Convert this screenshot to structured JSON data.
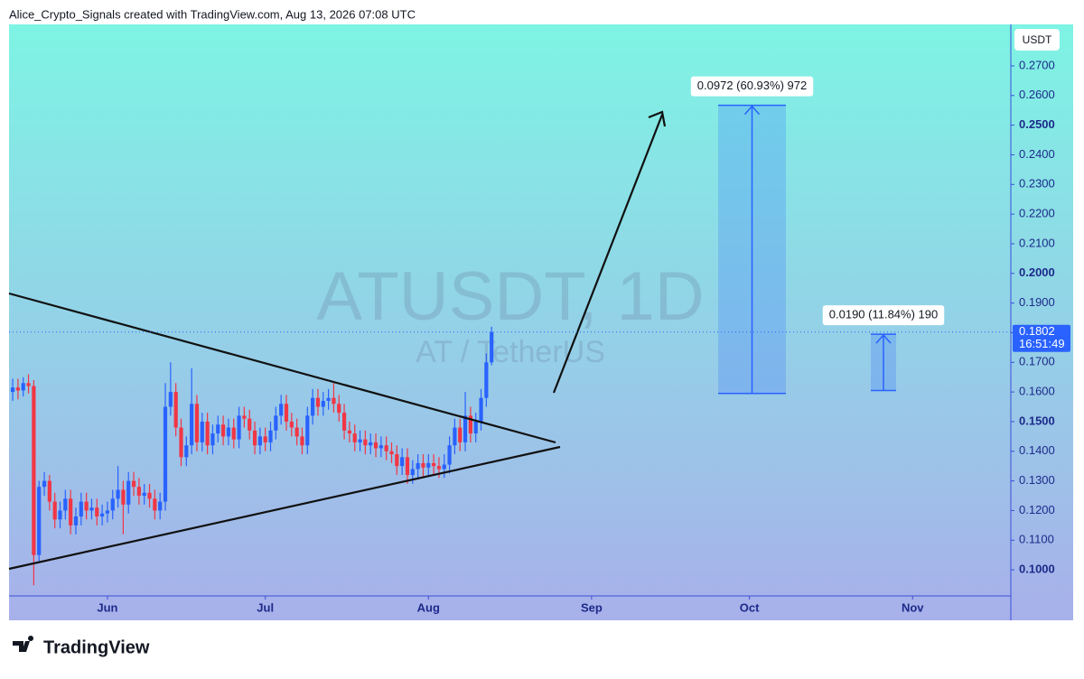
{
  "chart_data": {
    "type": "candlestick",
    "attribution": "Alice_Crypto_Signals created with TradingView.com, Aug 13, 2026 07:08 UTC",
    "title": "ATUSDT, 1D",
    "subtitle": "AT / TetherUS",
    "currency": "USDT",
    "brand": "TradingView",
    "up_color": "#2962ff",
    "down_color": "#f23645",
    "xlim": [
      -0.7,
      189.5
    ],
    "xticks": [
      {
        "value": 18,
        "label": "Jun"
      },
      {
        "value": 48,
        "label": "Jul"
      },
      {
        "value": 79,
        "label": "Aug"
      },
      {
        "value": 110,
        "label": "Sep"
      },
      {
        "value": 140,
        "label": "Oct"
      },
      {
        "value": 171,
        "label": "Nov"
      }
    ],
    "ylim": [
      0.0912,
      0.284
    ],
    "yticks": [
      {
        "value": 0.1,
        "label": "0.1000",
        "bold": true
      },
      {
        "value": 0.11,
        "label": "0.1100"
      },
      {
        "value": 0.12,
        "label": "0.1200"
      },
      {
        "value": 0.13,
        "label": "0.1300"
      },
      {
        "value": 0.14,
        "label": "0.1400"
      },
      {
        "value": 0.15,
        "label": "0.1500",
        "bold": true
      },
      {
        "value": 0.16,
        "label": "0.1600"
      },
      {
        "value": 0.17,
        "label": "0.1700"
      },
      {
        "value": 0.18,
        "label": "0.1800"
      },
      {
        "value": 0.19,
        "label": "0.1900"
      },
      {
        "value": 0.2,
        "label": "0.2000",
        "bold": true
      },
      {
        "value": 0.21,
        "label": "0.2100"
      },
      {
        "value": 0.22,
        "label": "0.2200"
      },
      {
        "value": 0.23,
        "label": "0.2300"
      },
      {
        "value": 0.24,
        "label": "0.2400"
      },
      {
        "value": 0.25,
        "label": "0.2500",
        "bold": true
      },
      {
        "value": 0.26,
        "label": "0.2600"
      },
      {
        "value": 0.27,
        "label": "0.2700"
      }
    ],
    "last_price": 0.1802,
    "countdown": "16:51:49",
    "x": [
      0,
      1,
      2,
      3,
      4,
      5,
      6,
      7,
      8,
      9,
      10,
      11,
      12,
      13,
      14,
      15,
      16,
      17,
      18,
      19,
      20,
      21,
      22,
      23,
      24,
      25,
      26,
      27,
      28,
      29,
      30,
      31,
      32,
      33,
      34,
      35,
      36,
      37,
      38,
      39,
      40,
      41,
      42,
      43,
      44,
      45,
      46,
      47,
      48,
      49,
      50,
      51,
      52,
      53,
      54,
      55,
      56,
      57,
      58,
      59,
      60,
      61,
      62,
      63,
      64,
      65,
      66,
      67,
      68,
      69,
      70,
      71,
      72,
      73,
      74,
      75,
      76,
      77,
      78,
      79,
      80,
      81,
      82,
      83,
      84,
      85,
      86,
      87,
      88,
      89,
      90,
      91
    ],
    "open": [
      0.16,
      0.1615,
      0.1605,
      0.163,
      0.162,
      0.105,
      0.128,
      0.13,
      0.123,
      0.117,
      0.12,
      0.124,
      0.115,
      0.118,
      0.123,
      0.12,
      0.121,
      0.118,
      0.119,
      0.12,
      0.124,
      0.127,
      0.122,
      0.13,
      0.128,
      0.125,
      0.126,
      0.124,
      0.12,
      0.123,
      0.155,
      0.16,
      0.148,
      0.138,
      0.142,
      0.156,
      0.143,
      0.15,
      0.142,
      0.146,
      0.149,
      0.145,
      0.148,
      0.144,
      0.152,
      0.151,
      0.147,
      0.142,
      0.145,
      0.143,
      0.147,
      0.152,
      0.156,
      0.15,
      0.148,
      0.145,
      0.142,
      0.152,
      0.158,
      0.155,
      0.157,
      0.158,
      0.156,
      0.153,
      0.147,
      0.146,
      0.143,
      0.144,
      0.142,
      0.143,
      0.141,
      0.142,
      0.14,
      0.139,
      0.135,
      0.138,
      0.132,
      0.134,
      0.136,
      0.1345,
      0.136,
      0.135,
      0.134,
      0.1355,
      0.142,
      0.148,
      0.143,
      0.152,
      0.146,
      0.15,
      0.158,
      0.17
    ],
    "high": [
      0.1645,
      0.1645,
      0.165,
      0.166,
      0.164,
      0.13,
      0.133,
      0.132,
      0.126,
      0.123,
      0.127,
      0.127,
      0.121,
      0.126,
      0.126,
      0.124,
      0.124,
      0.122,
      0.123,
      0.127,
      0.135,
      0.13,
      0.133,
      0.133,
      0.131,
      0.129,
      0.129,
      0.127,
      0.126,
      0.163,
      0.17,
      0.163,
      0.151,
      0.145,
      0.168,
      0.159,
      0.153,
      0.153,
      0.149,
      0.152,
      0.152,
      0.151,
      0.151,
      0.155,
      0.155,
      0.154,
      0.15,
      0.148,
      0.148,
      0.15,
      0.155,
      0.159,
      0.159,
      0.153,
      0.151,
      0.148,
      0.155,
      0.161,
      0.161,
      0.16,
      0.161,
      0.163,
      0.159,
      0.156,
      0.15,
      0.149,
      0.147,
      0.147,
      0.146,
      0.146,
      0.145,
      0.145,
      0.143,
      0.142,
      0.141,
      0.141,
      0.137,
      0.139,
      0.139,
      0.139,
      0.139,
      0.138,
      0.139,
      0.145,
      0.151,
      0.151,
      0.16,
      0.155,
      0.153,
      0.161,
      0.173,
      0.182
    ],
    "low": [
      0.157,
      0.1575,
      0.1585,
      0.1595,
      0.0948,
      0.103,
      0.125,
      0.12,
      0.114,
      0.114,
      0.117,
      0.112,
      0.112,
      0.115,
      0.117,
      0.117,
      0.115,
      0.115,
      0.116,
      0.117,
      0.121,
      0.112,
      0.119,
      0.125,
      0.122,
      0.122,
      0.121,
      0.117,
      0.117,
      0.12,
      0.152,
      0.145,
      0.135,
      0.135,
      0.139,
      0.14,
      0.14,
      0.139,
      0.139,
      0.143,
      0.142,
      0.142,
      0.141,
      0.141,
      0.148,
      0.144,
      0.139,
      0.139,
      0.14,
      0.14,
      0.144,
      0.149,
      0.147,
      0.145,
      0.142,
      0.139,
      0.139,
      0.149,
      0.152,
      0.152,
      0.154,
      0.153,
      0.15,
      0.144,
      0.143,
      0.14,
      0.14,
      0.139,
      0.139,
      0.138,
      0.138,
      0.137,
      0.136,
      0.132,
      0.132,
      0.129,
      0.129,
      0.131,
      0.1315,
      0.1315,
      0.132,
      0.131,
      0.131,
      0.1325,
      0.139,
      0.14,
      0.14,
      0.143,
      0.143,
      0.147,
      0.155,
      0.169
    ],
    "close": [
      0.1615,
      0.1605,
      0.163,
      0.162,
      0.105,
      0.128,
      0.13,
      0.123,
      0.117,
      0.12,
      0.124,
      0.115,
      0.118,
      0.123,
      0.12,
      0.121,
      0.118,
      0.119,
      0.12,
      0.124,
      0.127,
      0.122,
      0.13,
      0.128,
      0.125,
      0.126,
      0.124,
      0.12,
      0.123,
      0.155,
      0.16,
      0.148,
      0.138,
      0.142,
      0.156,
      0.143,
      0.15,
      0.142,
      0.146,
      0.149,
      0.145,
      0.148,
      0.144,
      0.152,
      0.151,
      0.147,
      0.142,
      0.145,
      0.143,
      0.147,
      0.152,
      0.156,
      0.15,
      0.148,
      0.145,
      0.142,
      0.152,
      0.158,
      0.155,
      0.157,
      0.158,
      0.156,
      0.153,
      0.147,
      0.146,
      0.143,
      0.144,
      0.142,
      0.143,
      0.141,
      0.142,
      0.14,
      0.139,
      0.135,
      0.138,
      0.132,
      0.134,
      0.136,
      0.1345,
      0.136,
      0.135,
      0.134,
      0.1355,
      0.142,
      0.148,
      0.143,
      0.152,
      0.146,
      0.15,
      0.158,
      0.17,
      0.1802
    ],
    "annotations": [
      {
        "label": "0.0972 (60.93%) 972",
        "from": 0.1595,
        "to": 0.2567
      },
      {
        "label": "0.0190 (11.84%) 190",
        "from": 0.1605,
        "to": 0.1795
      }
    ]
  }
}
